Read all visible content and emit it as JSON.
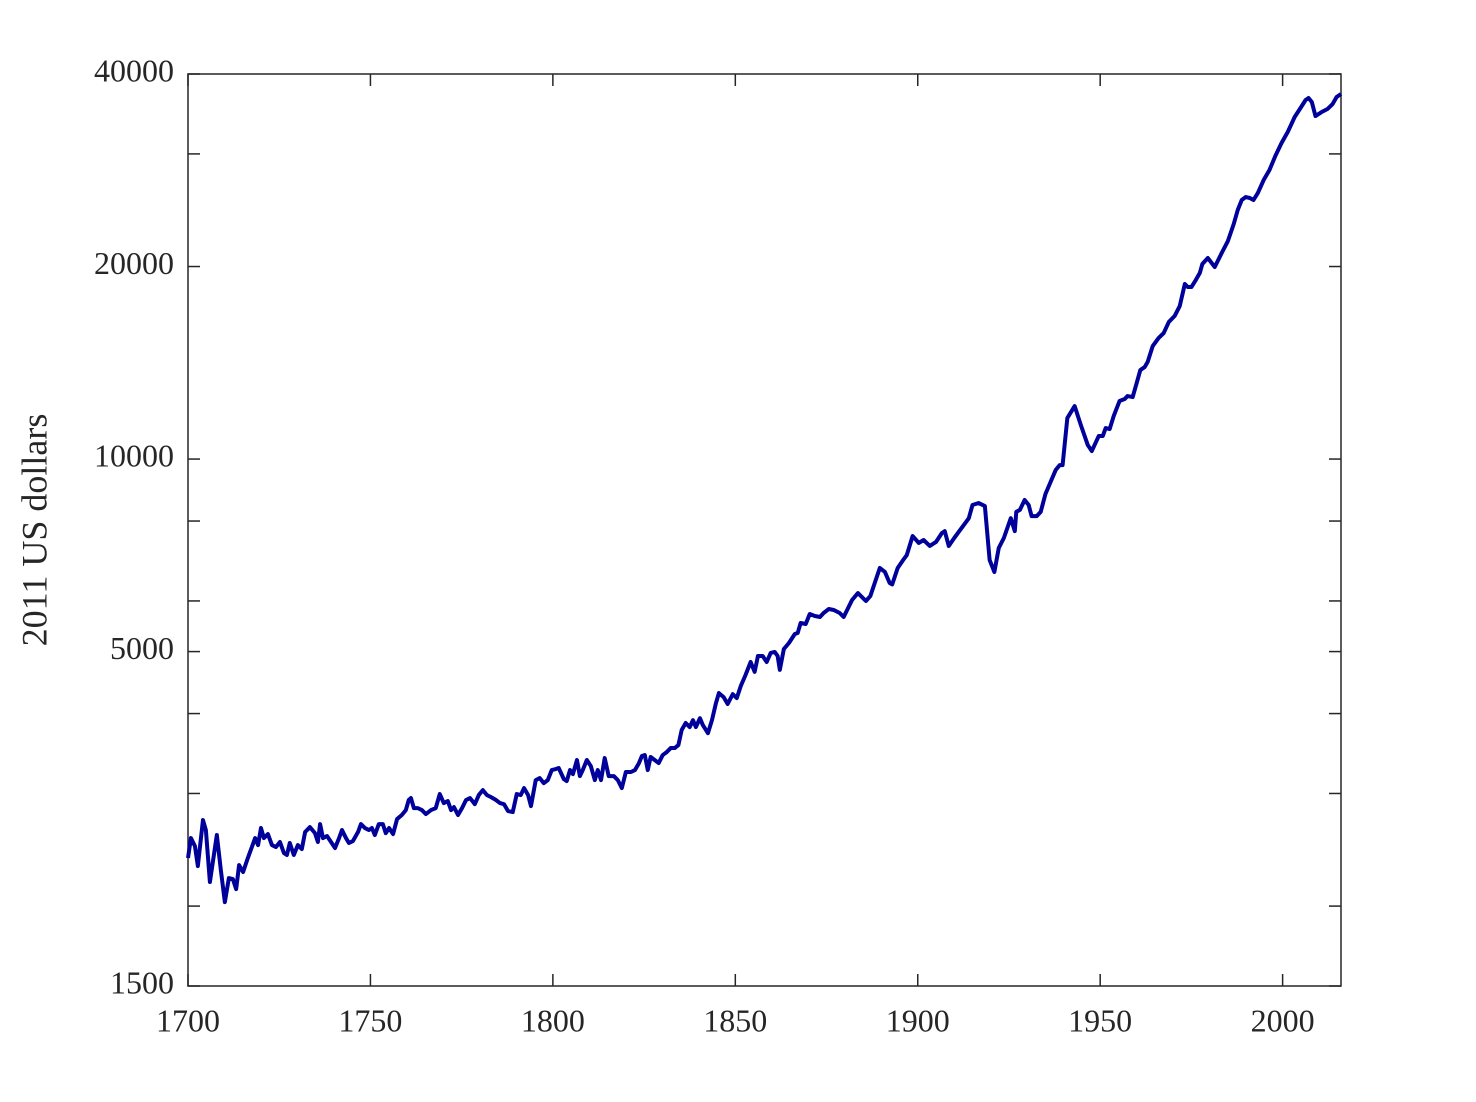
{
  "chart_data": {
    "type": "line",
    "y_label": "2011 US dollars",
    "color": "#00009b",
    "log_y": true,
    "xlim": [
      1700,
      2016
    ],
    "xticks": [
      1700,
      1750,
      1800,
      1850,
      1900,
      1950,
      2000
    ],
    "ylim": [
      1500,
      40000
    ],
    "yticks": [
      1500,
      5000,
      10000,
      20000,
      40000
    ],
    "minor_yticks": [
      2000,
      3000,
      4000,
      6000,
      8000,
      30000
    ],
    "x": [
      1700,
      1700.8,
      1701.9,
      1702.7,
      1704.1,
      1704.9,
      1706,
      1707.9,
      1709,
      1710.1,
      1711.2,
      1712.3,
      1713.2,
      1714,
      1715.1,
      1716.4,
      1718.4,
      1719.2,
      1720,
      1720.8,
      1721.9,
      1723,
      1724.1,
      1725.2,
      1726.3,
      1727.1,
      1727.9,
      1729,
      1730.1,
      1731.2,
      1732.1,
      1733.4,
      1734.8,
      1735.6,
      1736.2,
      1737,
      1738.1,
      1739.2,
      1740.3,
      1741.4,
      1742.2,
      1743.3,
      1744.1,
      1745.2,
      1746.6,
      1747.4,
      1748.5,
      1749.6,
      1750.4,
      1751.2,
      1752.3,
      1753.4,
      1754.2,
      1755.1,
      1756.2,
      1757.3,
      1758.6,
      1759.7,
      1760.5,
      1761.1,
      1761.9,
      1763,
      1764.1,
      1765.2,
      1766.6,
      1767.9,
      1769,
      1770.1,
      1771.2,
      1772.1,
      1772.9,
      1774,
      1775.1,
      1776.2,
      1777.3,
      1778.6,
      1779.7,
      1780.8,
      1781.9,
      1783,
      1784.4,
      1785.5,
      1786.6,
      1787.7,
      1789,
      1790.1,
      1791.2,
      1792.1,
      1793.2,
      1794,
      1795.3,
      1796.4,
      1797.5,
      1798.6,
      1799.7,
      1800.8,
      1801.6,
      1803,
      1803.8,
      1804.7,
      1805.5,
      1806.6,
      1807.4,
      1808.2,
      1809.3,
      1810.4,
      1811.5,
      1812.3,
      1813.2,
      1814.2,
      1815.3,
      1816.7,
      1817.8,
      1818.9,
      1820,
      1821.4,
      1822.5,
      1823.6,
      1824.4,
      1825.2,
      1826,
      1826.8,
      1827.9,
      1829,
      1830.1,
      1831.2,
      1832.3,
      1833.4,
      1834.4,
      1835.3,
      1836.4,
      1837.5,
      1838.4,
      1839.2,
      1840.3,
      1841.1,
      1842.5,
      1843.6,
      1844.7,
      1845.5,
      1846.8,
      1847.9,
      1849.3,
      1850.4,
      1851.5,
      1852.8,
      1854.2,
      1855.3,
      1856.2,
      1857.5,
      1858.6,
      1859.7,
      1860.8,
      1861.6,
      1862.2,
      1863.3,
      1864.7,
      1866.3,
      1867.1,
      1867.9,
      1869.3,
      1870.4,
      1871.8,
      1873.2,
      1874.2,
      1875.6,
      1877,
      1878.6,
      1879.7,
      1882,
      1883.6,
      1885.8,
      1887,
      1889.6,
      1891,
      1892.3,
      1893,
      1894.5,
      1896,
      1897,
      1898.6,
      1900.3,
      1901.6,
      1903.3,
      1905,
      1906.6,
      1907.4,
      1908.5,
      1910,
      1911.8,
      1913,
      1914,
      1915,
      1916.7,
      1918.4,
      1919.7,
      1921,
      1922.2,
      1923.6,
      1925.5,
      1926.6,
      1927,
      1928,
      1929.3,
      1930.4,
      1931.2,
      1932.6,
      1933.7,
      1935,
      1936.4,
      1937.8,
      1938.9,
      1939.7,
      1941,
      1943,
      1944.7,
      1946.6,
      1947.7,
      1949.6,
      1950.7,
      1951.5,
      1952.6,
      1953.7,
      1955.3,
      1956.7,
      1957.5,
      1958.9,
      1960,
      1961,
      1962.2,
      1963,
      1964.4,
      1966,
      1967.4,
      1968.8,
      1970.4,
      1971.8,
      1973.2,
      1974,
      1975,
      1976.2,
      1977.3,
      1978,
      1979.5,
      1981.4,
      1983.3,
      1985,
      1986.6,
      1987.7,
      1988.8,
      1989.9,
      1991,
      1992,
      1993.2,
      1994.8,
      1996.4,
      1998,
      1999.7,
      2001.4,
      2003.3,
      2004.9,
      2006.3,
      2007.1,
      2008,
      2009,
      2010.7,
      2012.3,
      2013.7,
      2014.8,
      2016
    ],
    "values": [
      2378,
      2555,
      2482,
      2310,
      2726,
      2630,
      2181,
      2583,
      2277,
      2029,
      2212,
      2204,
      2126,
      2318,
      2261,
      2378,
      2555,
      2491,
      2649,
      2555,
      2592,
      2491,
      2474,
      2519,
      2421,
      2404,
      2510,
      2404,
      2491,
      2456,
      2611,
      2658,
      2601,
      2519,
      2687,
      2555,
      2574,
      2519,
      2465,
      2555,
      2630,
      2555,
      2510,
      2528,
      2611,
      2687,
      2649,
      2630,
      2649,
      2583,
      2687,
      2687,
      2601,
      2649,
      2592,
      2736,
      2776,
      2826,
      2930,
      2951,
      2846,
      2846,
      2826,
      2786,
      2826,
      2846,
      2994,
      2898,
      2919,
      2826,
      2856,
      2776,
      2846,
      2930,
      2951,
      2887,
      2983,
      3037,
      2983,
      2962,
      2930,
      2898,
      2887,
      2816,
      2806,
      2994,
      2983,
      3059,
      2983,
      2867,
      3148,
      3171,
      3114,
      3148,
      3264,
      3276,
      3288,
      3159,
      3137,
      3264,
      3217,
      3384,
      3194,
      3264,
      3384,
      3311,
      3148,
      3264,
      3148,
      3408,
      3194,
      3194,
      3148,
      3059,
      3241,
      3241,
      3264,
      3347,
      3433,
      3445,
      3264,
      3421,
      3384,
      3347,
      3445,
      3482,
      3533,
      3533,
      3571,
      3770,
      3866,
      3810,
      3906,
      3810,
      3934,
      3838,
      3728,
      3906,
      4155,
      4306,
      4244,
      4140,
      4290,
      4229,
      4417,
      4596,
      4816,
      4648,
      4921,
      4921,
      4816,
      4975,
      4993,
      4921,
      4682,
      5047,
      5157,
      5327,
      5346,
      5542,
      5522,
      5724,
      5683,
      5663,
      5745,
      5828,
      5807,
      5745,
      5663,
      6020,
      6172,
      5999,
      6106,
      6756,
      6660,
      6400,
      6368,
      6756,
      6953,
      7079,
      7580,
      7392,
      7472,
      7313,
      7419,
      7660,
      7715,
      7313,
      7526,
      7771,
      7940,
      8084,
      8475,
      8536,
      8444,
      6953,
      6660,
      7260,
      7526,
      8084,
      7715,
      8269,
      8329,
      8629,
      8475,
      8144,
      8144,
      8269,
      8818,
      9207,
      9612,
      9785,
      9785,
      11591,
      12103,
      11302,
      10517,
      10292,
      10863,
      10863,
      11181,
      11141,
      11675,
      12323,
      12412,
      12546,
      12501,
      13148,
      13778,
      13927,
      14180,
      15022,
      15460,
      15741,
      16377,
      16735,
      17349,
      18780,
      18578,
      18578,
      19052,
      19538,
      20182,
      20623,
      19965,
      20997,
      21924,
      23308,
      24513,
      25412,
      25688,
      25596,
      25412,
      26060,
      27308,
      28310,
      29774,
      31200,
      32460,
      34262,
      35391,
      36424,
      36686,
      36162,
      34386,
      34884,
      35264,
      35904,
      36819,
      37219
    ]
  }
}
